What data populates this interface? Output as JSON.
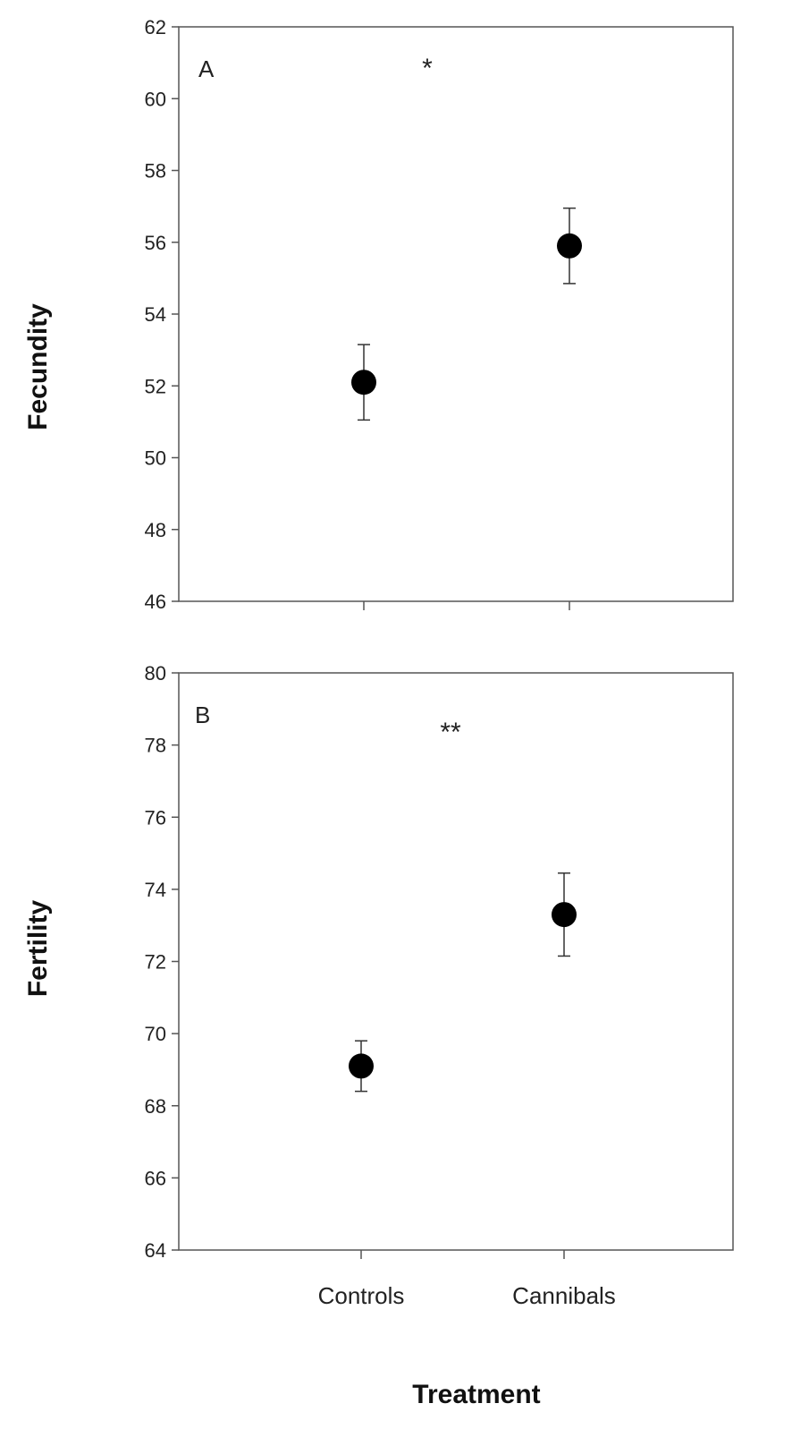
{
  "chart_data": [
    {
      "type": "scatter",
      "panel_label": "A",
      "ylabel": "Fecundity",
      "xlabel": "",
      "ylim": [
        46,
        62
      ],
      "yticks": [
        46,
        48,
        50,
        52,
        54,
        56,
        58,
        60,
        62
      ],
      "categories": [
        "Controls",
        "Cannibals"
      ],
      "show_category_labels": false,
      "values": [
        52.1,
        55.9
      ],
      "errors": [
        1.05,
        1.05
      ],
      "significance": "*",
      "grid": false,
      "legend": "none"
    },
    {
      "type": "scatter",
      "panel_label": "B",
      "ylabel": "Fertility",
      "xlabel": "Treatment",
      "ylim": [
        64,
        80
      ],
      "yticks": [
        64,
        66,
        68,
        70,
        72,
        74,
        76,
        78,
        80
      ],
      "categories": [
        "Controls",
        "Cannibals"
      ],
      "show_category_labels": true,
      "values": [
        69.1,
        73.3
      ],
      "errors": [
        0.7,
        1.15
      ],
      "significance": "**",
      "grid": false,
      "legend": "none"
    }
  ]
}
